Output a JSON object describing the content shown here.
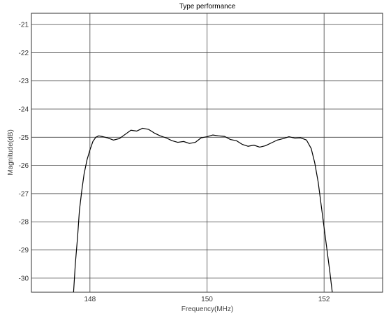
{
  "chart_data": {
    "type": "line",
    "title": "Type performance",
    "xlabel": "Frequency(MHz)",
    "ylabel": "Magnitude(dB)",
    "xlim": [
      147.0,
      153.0
    ],
    "ylim": [
      -30.5,
      -20.6
    ],
    "xticks": [
      148,
      150,
      152
    ],
    "yticks": [
      -21,
      -22,
      -23,
      -24,
      -25,
      -26,
      -27,
      -28,
      -29,
      -30
    ],
    "grid": true,
    "colors": {
      "line": "#000000",
      "grid": "#404040",
      "frame": "#303030"
    },
    "series": [
      {
        "x": [
          147.72,
          147.75,
          147.79,
          147.82,
          147.86,
          147.9,
          147.95,
          148.0,
          148.05,
          148.1,
          148.15,
          148.2,
          148.3,
          148.4,
          148.5,
          148.6,
          148.7,
          148.8,
          148.9,
          149.0,
          149.1,
          149.2,
          149.3,
          149.4,
          149.5,
          149.6,
          149.7,
          149.8,
          149.9,
          150.0,
          150.1,
          150.2,
          150.3,
          150.4,
          150.5,
          150.6,
          150.7,
          150.8,
          150.9,
          151.0,
          151.1,
          151.2,
          151.3,
          151.4,
          151.5,
          151.6,
          151.7,
          151.78,
          151.84,
          151.9,
          151.95,
          152.0,
          152.05,
          152.1,
          152.14
        ],
        "y": [
          -30.5,
          -29.5,
          -28.5,
          -27.6,
          -26.9,
          -26.3,
          -25.8,
          -25.45,
          -25.15,
          -25.0,
          -24.95,
          -24.97,
          -25.02,
          -25.1,
          -25.05,
          -24.9,
          -24.75,
          -24.78,
          -24.68,
          -24.72,
          -24.85,
          -24.95,
          -25.02,
          -25.12,
          -25.18,
          -25.15,
          -25.22,
          -25.18,
          -25.02,
          -24.98,
          -24.92,
          -24.95,
          -24.97,
          -25.08,
          -25.12,
          -25.25,
          -25.32,
          -25.28,
          -25.35,
          -25.3,
          -25.2,
          -25.1,
          -25.05,
          -24.98,
          -25.03,
          -25.02,
          -25.1,
          -25.4,
          -25.9,
          -26.6,
          -27.4,
          -28.2,
          -29.0,
          -29.8,
          -30.5
        ]
      }
    ]
  }
}
